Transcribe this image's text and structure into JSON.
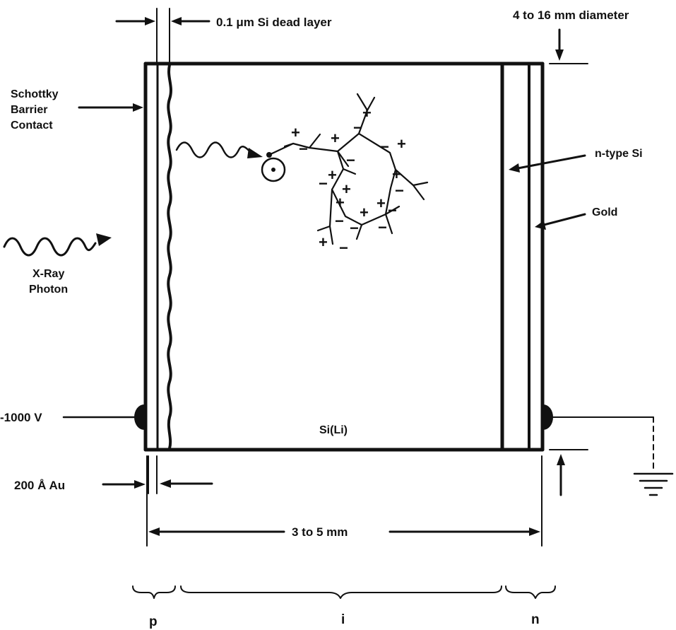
{
  "labels": {
    "dead_layer": "0.1 μm Si dead layer",
    "diameter": "4 to 16 mm diameter",
    "schottky_1": "Schottky",
    "schottky_2": "Barrier",
    "schottky_3": "Contact",
    "n_type": "n-type Si",
    "gold": "Gold",
    "xray_1": "X-Ray",
    "xray_2": "Photon",
    "voltage": "-1000 V",
    "sili": "Si(Li)",
    "au_thickness": "200 Å Au",
    "width": "3 to 5 mm",
    "region_p": "p",
    "region_i": "i",
    "region_n": "n"
  },
  "carriers": {
    "plus": "+",
    "minus": "−"
  }
}
